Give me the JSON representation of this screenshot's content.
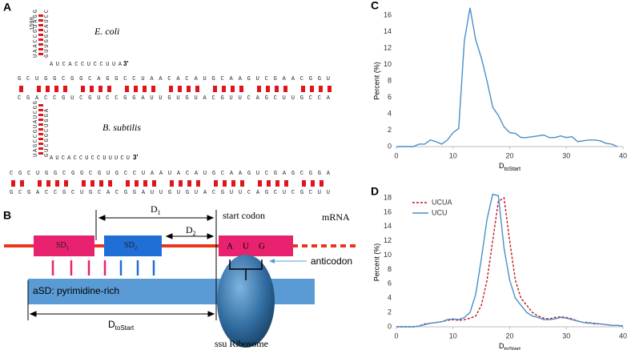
{
  "panel_a": {
    "label": "A",
    "organisms": [
      "E. coli",
      "B. subtilis"
    ],
    "three_prime": [
      "3'",
      "3'"
    ],
    "position": "1500",
    "ecoli_stem": "UAACCGUAGG",
    "ecoli_stem_pair": "GUUGGCAUCC",
    "ecoli_tail": "AUCACCUCCUUA",
    "ecoli_upper": "GCUGGCGGCAGGCCUAACACAUGCAAGUCGAACGGU",
    "ecoli_lower": "CGACCGUCGUCCGGAUUGUGUACGUUCAGCUUGCCA",
    "bsub_stem": "UAGCCGUAUCGG",
    "bsub_stem_pair": "GUCGGCUGGA",
    "bsub_tail": "AUCACCUCCUUUCU",
    "bsub_upper": "CGCUGGCGGCGUGCCUAAUACAUGCAAGUCGAGCGGA",
    "bsub_lower": "GCGACCGCUGCACGGAUUGUGUACGUUCAGCUCGCUU"
  },
  "panel_b": {
    "label": "B",
    "sd1": [
      "SD",
      "1"
    ],
    "sd2": [
      "SD",
      "2"
    ],
    "d1": [
      "D",
      "1"
    ],
    "d2": [
      "D",
      "2"
    ],
    "start_codon": "start codon",
    "mrna": "mRNA",
    "codon": [
      "A",
      "U",
      "G"
    ],
    "anticodon": "anticodon",
    "asd": "aSD: pyrimidine-rich",
    "dtostart": [
      "D",
      "toStart"
    ],
    "ribosome": "ssu Ribosome"
  },
  "chart_data": [
    {
      "type": "line",
      "label": "C",
      "ylabel": "Percent (%)",
      "xlabel": [
        "D",
        "toStart"
      ],
      "x": [
        0,
        1,
        2,
        3,
        4,
        5,
        6,
        7,
        8,
        9,
        10,
        11,
        12,
        13,
        14,
        15,
        16,
        17,
        18,
        19,
        20,
        21,
        22,
        23,
        24,
        25,
        26,
        27,
        28,
        29,
        30,
        31,
        32,
        33,
        34,
        35,
        36,
        37,
        38,
        39
      ],
      "values": [
        0,
        0,
        0,
        0,
        0.3,
        0.3,
        0.8,
        0.6,
        0.3,
        0.8,
        1.7,
        2.2,
        12.9,
        16.9,
        13,
        10.8,
        8,
        4.8,
        3.8,
        2.4,
        1.7,
        1.6,
        1.1,
        1.1,
        1.2,
        1.3,
        1.4,
        1.1,
        1.1,
        1.3,
        1.1,
        1.2,
        0.6,
        0.7,
        0.8,
        0.8,
        0.7,
        0.4,
        0.3,
        0
      ],
      "color": "#4a8fc9",
      "xlim": [
        0,
        40
      ],
      "xticks": [
        0,
        10,
        20,
        30,
        40
      ],
      "ylim": [
        0,
        16
      ],
      "yticks": [
        0,
        2,
        4,
        6,
        8,
        10,
        12,
        14,
        16
      ]
    },
    {
      "type": "line",
      "label": "D",
      "ylabel": "Percent (%)",
      "xlabel": [
        "D",
        "toStart"
      ],
      "x": [
        0,
        1,
        2,
        3,
        4,
        5,
        6,
        7,
        8,
        9,
        10,
        11,
        12,
        13,
        14,
        15,
        16,
        17,
        18,
        19,
        20,
        21,
        22,
        23,
        24,
        25,
        26,
        27,
        28,
        29,
        30,
        31,
        32,
        33,
        34,
        35,
        36,
        37,
        38,
        39,
        40
      ],
      "series": [
        {
          "name": "UCUA",
          "color": "#c0141c",
          "dashed": true,
          "values": [
            0,
            0,
            0,
            0,
            0.1,
            0.4,
            0.5,
            0.6,
            0.7,
            0.9,
            1.0,
            0.9,
            1.0,
            1.2,
            1.5,
            3,
            6.5,
            12,
            17.5,
            18,
            12,
            6.5,
            4,
            3,
            2,
            1.5,
            1.2,
            1.1,
            1.3,
            1.4,
            1.3,
            1.1,
            0.8,
            0.6,
            0.6,
            0.4,
            0.4,
            0.3,
            0.2,
            0.2,
            0.1
          ]
        },
        {
          "name": "UCU",
          "color": "#4a8fc9",
          "dashed": false,
          "values": [
            0,
            0,
            0,
            0,
            0.1,
            0.3,
            0.5,
            0.6,
            0.7,
            1.0,
            1.1,
            1.0,
            1.3,
            2,
            4.5,
            9.5,
            15,
            18.5,
            18.3,
            11,
            6.5,
            4,
            3,
            2,
            1.5,
            1.3,
            1.0,
            1.0,
            1.1,
            1.3,
            1.2,
            1.0,
            0.8,
            0.6,
            0.5,
            0.5,
            0.4,
            0.3,
            0.2,
            0.2,
            0.1
          ]
        }
      ],
      "legend": "upper left",
      "xlim": [
        0,
        40
      ],
      "xticks": [
        0,
        10,
        20,
        30,
        40
      ],
      "ylim": [
        0,
        18
      ],
      "yticks": [
        0,
        2,
        4,
        6,
        8,
        10,
        12,
        14,
        16,
        18
      ]
    }
  ]
}
